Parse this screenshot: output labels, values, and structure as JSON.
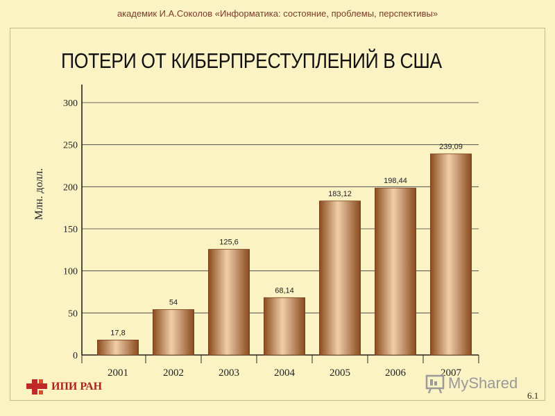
{
  "header": {
    "text": "академик И.А.Соколов «Информатика: состояние, проблемы, перспективы»"
  },
  "slide_number": "6.1",
  "logo": {
    "text": "ИПИ РАН"
  },
  "watermark": {
    "text": "MyShared"
  },
  "colors": {
    "background": "#fbf3c4",
    "bar_dark": "#8a4a1e",
    "bar_light": "#f0cfa8"
  },
  "chart_data": {
    "type": "bar",
    "title": "ПОТЕРИ ОТ КИБЕРПРЕСТУПЛЕНИЙ В США",
    "ylabel": "Млн. долл.",
    "xlabel": "",
    "categories": [
      "2001",
      "2002",
      "2003",
      "2004",
      "2005",
      "2006",
      "2007"
    ],
    "values": [
      17.8,
      54,
      125.6,
      68.14,
      183.12,
      198.44,
      239.09
    ],
    "value_labels": [
      "17,8",
      "54",
      "125,6",
      "68,14",
      "183,12",
      "198,44",
      "239,09"
    ],
    "ylim": [
      0,
      300
    ],
    "yticks": [
      0,
      50,
      100,
      150,
      200,
      250,
      300
    ],
    "grid": true,
    "legend": "none"
  }
}
